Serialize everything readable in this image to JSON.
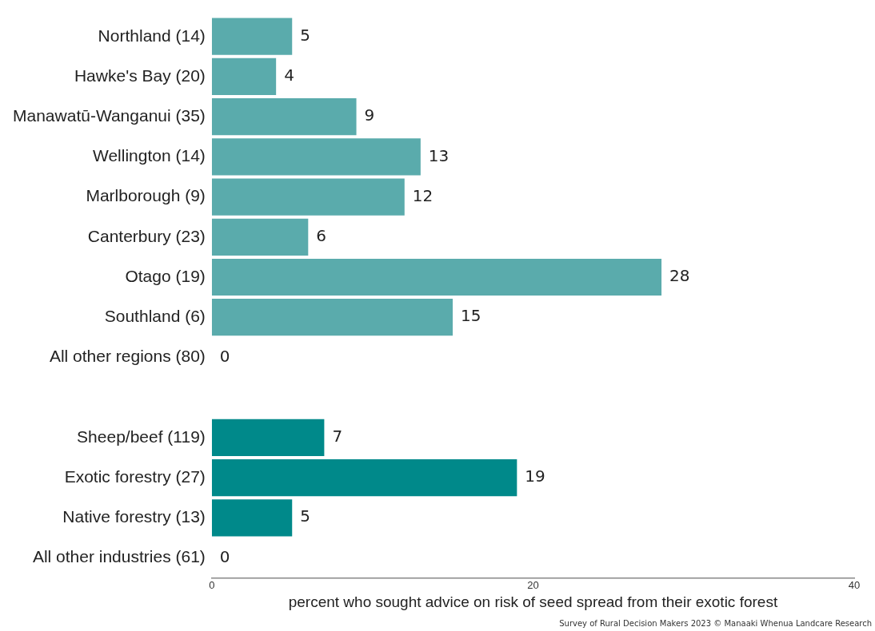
{
  "chart_data": {
    "type": "bar",
    "orientation": "horizontal",
    "xlabel": "percent who sought advice on risk of seed spread from their exotic forest",
    "categories": [
      "Northland (14)",
      "Hawke's Bay (20)",
      "Manawatū-Wanganui (35)",
      "Wellington (14)",
      "Marlborough (9)",
      "Canterbury (23)",
      "Otago (19)",
      "Southland (6)",
      "All other regions (80)",
      null,
      "Sheep/beef (119)",
      "Exotic forestry (27)",
      "Native forestry (13)",
      "All other industries (61)"
    ],
    "values": [
      5,
      4,
      9,
      13,
      12,
      6,
      28,
      15,
      0,
      null,
      7,
      19,
      5,
      0
    ],
    "colors": [
      "#5aabac",
      "#5aabac",
      "#5aabac",
      "#5aabac",
      "#5aabac",
      "#5aabac",
      "#5aabac",
      "#5aabac",
      "#5aabac",
      "#5aabac",
      "#00898a",
      "#00898a",
      "#00898a",
      "#00898a"
    ],
    "xlim": [
      0,
      40
    ],
    "xticks": [
      0,
      20,
      40
    ],
    "grid": false,
    "legend": false,
    "data_labels": true,
    "annotations": [
      "Survey of Rural Decision Makers 2023 © Manaaki Whenua Landcare Research"
    ]
  }
}
